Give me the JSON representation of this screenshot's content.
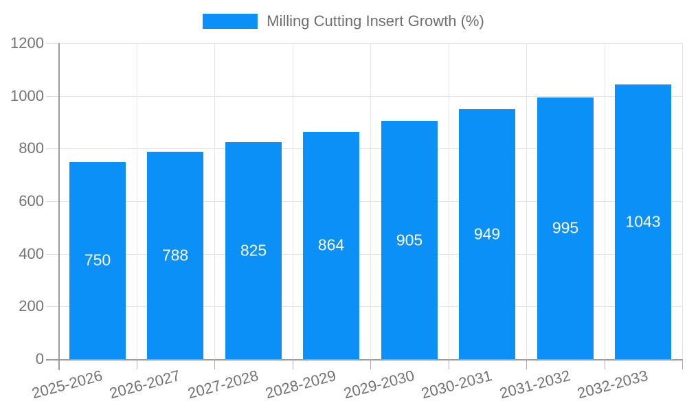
{
  "legend": {
    "label": "Milling Cutting Insert Growth (%)"
  },
  "chart_data": {
    "type": "bar",
    "title": "Milling Cutting Insert Growth (%)",
    "categories": [
      "2025-2026",
      "2026-2027",
      "2027-2028",
      "2028-2029",
      "2029-2030",
      "2030-2031",
      "2031-2032",
      "2032-2033"
    ],
    "series": [
      {
        "name": "Milling Cutting Insert Growth (%)",
        "values": [
          750,
          788,
          825,
          864,
          905,
          949,
          995,
          1043
        ]
      }
    ],
    "value_labels": [
      "750",
      "788",
      "825",
      "864",
      "905",
      "949",
      "995",
      "1043"
    ],
    "xlabel": "",
    "ylabel": "",
    "ylim": [
      0,
      1200
    ],
    "yticks": [
      0,
      200,
      400,
      600,
      800,
      1000,
      1200
    ],
    "ytick_labels": [
      "0",
      "200",
      "400",
      "600",
      "800",
      "1000",
      "1200"
    ],
    "grid": true,
    "legend_position": "top-center",
    "x_label_rotation_deg": -15
  },
  "colors": {
    "bar": "#0a90f6",
    "value_label": "#ffffff",
    "tick_label": "#737373",
    "legend_text": "#6e6e6e",
    "gridline": "#e3e3e3",
    "axis": "#9c9c9c",
    "background": "#ffffff"
  }
}
